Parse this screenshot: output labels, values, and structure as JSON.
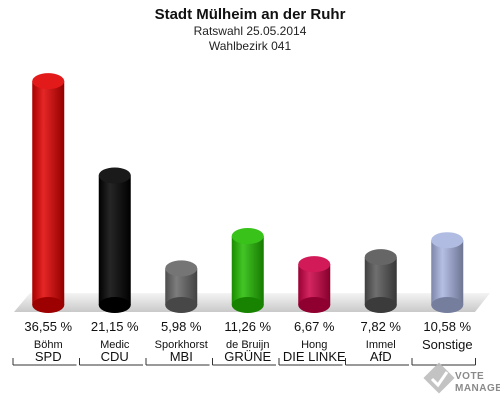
{
  "chart_data": {
    "type": "bar",
    "title": "Stadt Mülheim an der Ruhr",
    "subtitle_1": "Ratswahl 25.05.2014",
    "subtitle_2": "Wahlbezirk 041",
    "categories": [
      "SPD",
      "CDU",
      "MBI",
      "GRÜNE",
      "DIE LINKE",
      "AfD",
      "Sonstige"
    ],
    "candidates": [
      "Böhm",
      "Medic",
      "Sporkhorst",
      "de Bruijn",
      "Hong",
      "Immel",
      ""
    ],
    "values": [
      36.55,
      21.15,
      5.98,
      11.26,
      6.67,
      7.82,
      10.58
    ],
    "value_labels": [
      "36,55 %",
      "21,15 %",
      "5,98 %",
      "11,26 %",
      "6,67 %",
      "7,82 %",
      "10,58 %"
    ],
    "colors": [
      "#e00000",
      "#000000",
      "#666666",
      "#22bb00",
      "#cc0044",
      "#555555",
      "#a8b4e0"
    ],
    "ylim": [
      0,
      40
    ],
    "grid": false,
    "legend": "none"
  },
  "logo": {
    "line1": "VOTE",
    "line2": "MANAGER"
  }
}
